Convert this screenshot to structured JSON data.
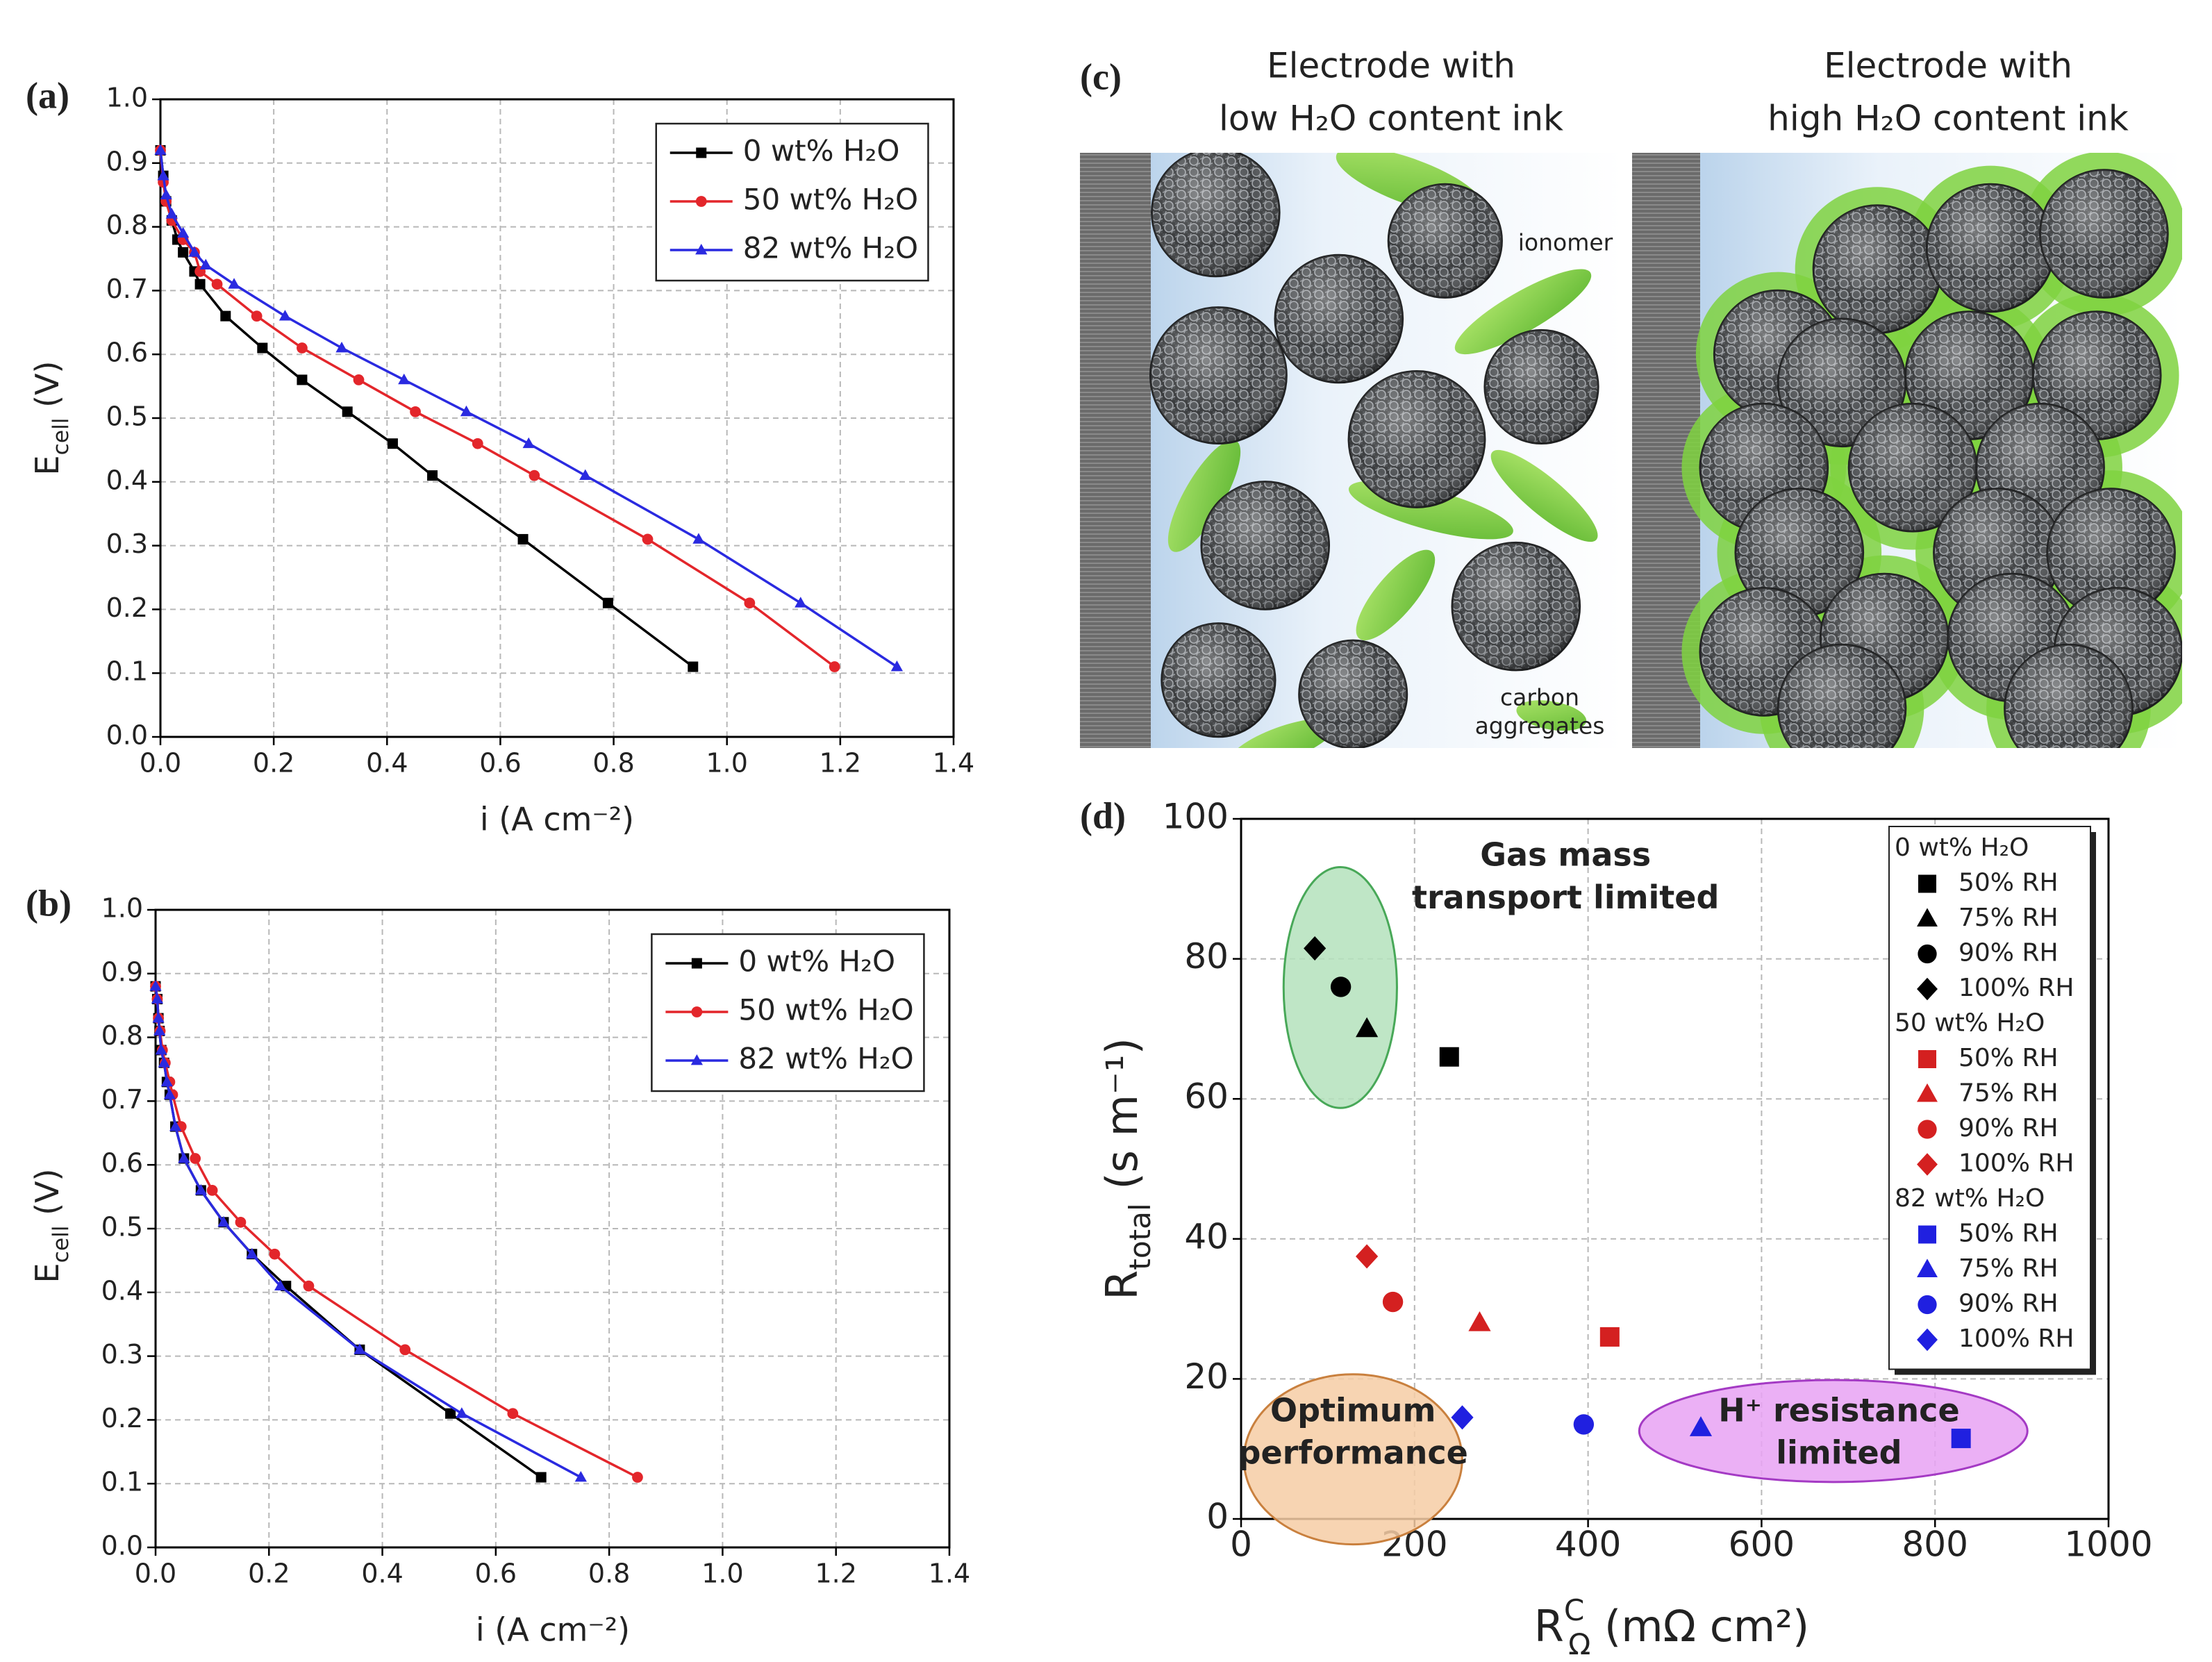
{
  "chart_data": [
    {
      "type": "line",
      "label": "(a)",
      "xlabel": "i (A cm⁻²)",
      "ylabel": [
        "E",
        "cell",
        " (V)"
      ],
      "xlim": [
        0,
        1.4
      ],
      "ylim": [
        0,
        1
      ],
      "xticks": [
        {
          "value": 0,
          "label": "0.0"
        },
        0.2,
        0.4,
        0.6,
        0.8,
        {
          "value": 1,
          "label": "1.0"
        },
        1.2,
        1.4
      ],
      "yticks": [
        {
          "value": 0,
          "label": "0.0"
        },
        0.1,
        0.2,
        0.3,
        0.4,
        0.5,
        0.6,
        0.7,
        0.8,
        0.9,
        {
          "value": 1,
          "label": "1.0"
        }
      ],
      "grid": true,
      "legend": "upper right",
      "series": [
        {
          "name": "0 wt% H₂O",
          "color": "#000000",
          "marker": "square",
          "x": [
            0,
            0.005,
            0.01,
            0.02,
            0.03,
            0.04,
            0.06,
            0.07,
            0.115,
            0.18,
            0.25,
            0.33,
            0.41,
            0.48,
            0.64,
            0.79,
            0.94
          ],
          "values": [
            0.92,
            0.88,
            0.84,
            0.81,
            0.78,
            0.76,
            0.73,
            0.71,
            0.66,
            0.61,
            0.56,
            0.51,
            0.46,
            0.41,
            0.31,
            0.21,
            0.11
          ]
        },
        {
          "name": "50 wt% H₂O",
          "color": "#e3262b",
          "marker": "circle",
          "x": [
            0,
            0.005,
            0.01,
            0.02,
            0.04,
            0.06,
            0.07,
            0.1,
            0.17,
            0.25,
            0.35,
            0.45,
            0.56,
            0.66,
            0.86,
            1.04,
            1.19
          ],
          "values": [
            0.92,
            0.87,
            0.84,
            0.81,
            0.78,
            0.76,
            0.73,
            0.71,
            0.66,
            0.61,
            0.56,
            0.51,
            0.46,
            0.41,
            0.31,
            0.21,
            0.11
          ]
        },
        {
          "name": "82 wt% H₂O",
          "color": "#2a2ae0",
          "marker": "triangle",
          "x": [
            0,
            0.005,
            0.01,
            0.02,
            0.04,
            0.06,
            0.08,
            0.13,
            0.22,
            0.32,
            0.43,
            0.54,
            0.65,
            0.75,
            0.95,
            1.13,
            1.3
          ],
          "values": [
            0.92,
            0.88,
            0.85,
            0.82,
            0.79,
            0.76,
            0.74,
            0.71,
            0.66,
            0.61,
            0.56,
            0.51,
            0.46,
            0.41,
            0.31,
            0.21,
            0.11
          ]
        }
      ]
    },
    {
      "type": "line",
      "label": "(b)",
      "xlabel": "i (A cm⁻²)",
      "ylabel": [
        "E",
        "cell",
        " (V)"
      ],
      "xlim": [
        0,
        1.4
      ],
      "ylim": [
        0,
        1
      ],
      "xticks": [
        {
          "value": 0,
          "label": "0.0"
        },
        0.2,
        0.4,
        0.6,
        0.8,
        {
          "value": 1,
          "label": "1.0"
        },
        1.2,
        1.4
      ],
      "yticks": [
        {
          "value": 0,
          "label": "0.0"
        },
        0.1,
        0.2,
        0.3,
        0.4,
        0.5,
        0.6,
        0.7,
        0.8,
        0.9,
        {
          "value": 1,
          "label": "1.0"
        }
      ],
      "grid": true,
      "legend": "upper right",
      "series": [
        {
          "name": "0 wt% H₂O",
          "color": "#000000",
          "marker": "square",
          "x": [
            0,
            0.003,
            0.005,
            0.007,
            0.01,
            0.015,
            0.02,
            0.025,
            0.035,
            0.05,
            0.08,
            0.12,
            0.17,
            0.23,
            0.36,
            0.52,
            0.68
          ],
          "values": [
            0.88,
            0.86,
            0.83,
            0.81,
            0.78,
            0.76,
            0.73,
            0.71,
            0.66,
            0.61,
            0.56,
            0.51,
            0.46,
            0.41,
            0.31,
            0.21,
            0.11
          ]
        },
        {
          "name": "50 wt% H₂O",
          "color": "#e3262b",
          "marker": "circle",
          "x": [
            0,
            0.003,
            0.005,
            0.008,
            0.012,
            0.017,
            0.025,
            0.03,
            0.045,
            0.07,
            0.1,
            0.15,
            0.21,
            0.27,
            0.44,
            0.63,
            0.85
          ],
          "values": [
            0.88,
            0.86,
            0.83,
            0.81,
            0.78,
            0.76,
            0.73,
            0.71,
            0.66,
            0.61,
            0.56,
            0.51,
            0.46,
            0.41,
            0.31,
            0.21,
            0.11
          ]
        },
        {
          "name": "82 wt% H₂O",
          "color": "#2a2ae0",
          "marker": "triangle",
          "x": [
            0,
            0.003,
            0.005,
            0.007,
            0.01,
            0.015,
            0.02,
            0.025,
            0.035,
            0.05,
            0.08,
            0.12,
            0.17,
            0.22,
            0.36,
            0.54,
            0.75
          ],
          "values": [
            0.88,
            0.86,
            0.83,
            0.81,
            0.78,
            0.76,
            0.73,
            0.71,
            0.66,
            0.61,
            0.56,
            0.51,
            0.46,
            0.41,
            0.31,
            0.21,
            0.11
          ]
        }
      ]
    },
    {
      "type": "scatter",
      "label": "(d)",
      "xlabel": [
        "R",
        "C",
        "Ω",
        " (mΩ cm²)"
      ],
      "ylabel": [
        "R",
        "total",
        " (s m⁻¹)"
      ],
      "xlim": [
        0,
        1000
      ],
      "ylim": [
        0,
        100
      ],
      "xticks": [
        0,
        200,
        400,
        600,
        800,
        1000
      ],
      "yticks": [
        0,
        20,
        40,
        60,
        80,
        100
      ],
      "grid": true,
      "legend": "upper right",
      "groups": [
        {
          "name": "0 wt% H₂O",
          "color": "#000000",
          "series": [
            {
              "name": "50% RH",
              "marker": "square",
              "x": [
                240
              ],
              "values": [
                66
              ]
            },
            {
              "name": "75% RH",
              "marker": "triangle",
              "x": [
                145
              ],
              "values": [
                70
              ]
            },
            {
              "name": "90% RH",
              "marker": "circle",
              "x": [
                115
              ],
              "values": [
                76
              ]
            },
            {
              "name": "100% RH",
              "marker": "diamond",
              "x": [
                85
              ],
              "values": [
                81.5
              ]
            }
          ]
        },
        {
          "name": "50 wt% H₂O",
          "color": "#d42020",
          "series": [
            {
              "name": "50% RH",
              "marker": "square",
              "x": [
                425
              ],
              "values": [
                26
              ]
            },
            {
              "name": "75% RH",
              "marker": "triangle",
              "x": [
                275
              ],
              "values": [
                28
              ]
            },
            {
              "name": "90% RH",
              "marker": "circle",
              "x": [
                175
              ],
              "values": [
                31
              ]
            },
            {
              "name": "100% RH",
              "marker": "diamond",
              "x": [
                145
              ],
              "values": [
                37.5
              ]
            }
          ]
        },
        {
          "name": "82 wt% H₂O",
          "color": "#2020e0",
          "series": [
            {
              "name": "50% RH",
              "marker": "square",
              "x": [
                830
              ],
              "values": [
                11.5
              ]
            },
            {
              "name": "75% RH",
              "marker": "triangle",
              "x": [
                530
              ],
              "values": [
                13
              ]
            },
            {
              "name": "90% RH",
              "marker": "circle",
              "x": [
                395
              ],
              "values": [
                13.5
              ]
            },
            {
              "name": "100% RH",
              "marker": "diamond",
              "x": [
                255
              ],
              "values": [
                14.5
              ]
            }
          ]
        }
      ],
      "annotations": [
        {
          "lines": [
            "Gas mass",
            "transport limited"
          ],
          "color": "#3cb04a"
        },
        {
          "lines": [
            "Optimum",
            "performance"
          ],
          "color": "#d2691e"
        },
        {
          "lines": [
            "H⁺ resistance",
            "limited"
          ],
          "color": "#7a1f9a"
        }
      ]
    }
  ],
  "illustration": {
    "label": "(c)",
    "panels": [
      {
        "title": [
          "Electrode with",
          "low H₂O content ink"
        ]
      },
      {
        "title": [
          "Electrode with",
          "high H₂O content ink"
        ]
      }
    ],
    "ionomer_label": "ionomer",
    "carbon_label": [
      "carbon",
      "aggregates"
    ]
  }
}
